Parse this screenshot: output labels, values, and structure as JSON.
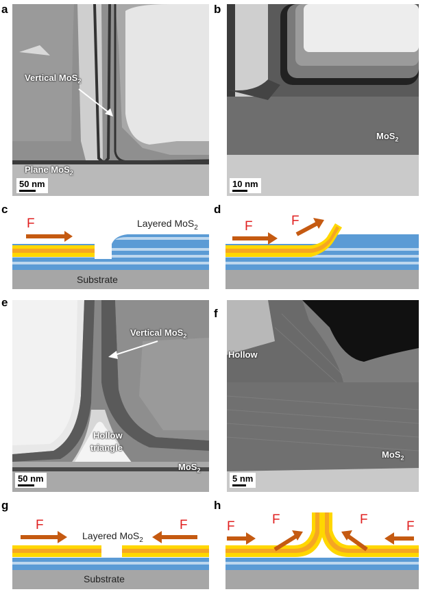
{
  "panels": {
    "a": {
      "letter": "a",
      "label_vertical": "Vertical MoS",
      "label_vertical_sub": "2",
      "label_plane": "Plane MoS",
      "label_plane_sub": "2",
      "scale": "50 nm"
    },
    "b": {
      "letter": "b",
      "label_mos2": "MoS",
      "label_mos2_sub": "2",
      "scale": "10 nm"
    },
    "c": {
      "letter": "c",
      "force": "F",
      "layered": "Layered MoS",
      "layered_sub": "2",
      "substrate": "Substrate"
    },
    "d": {
      "letter": "d",
      "force1": "F",
      "force2": "F"
    },
    "e": {
      "letter": "e",
      "label_vertical": "Vertical MoS",
      "label_vertical_sub": "2",
      "label_hollow": "Hollow",
      "label_triangle": "triangle",
      "label_mos2": "MoS",
      "label_mos2_sub": "2",
      "scale": "50 nm"
    },
    "f": {
      "letter": "f",
      "label_hollow": "Hollow",
      "label_mos2": "MoS",
      "label_mos2_sub": "2",
      "scale": "5 nm"
    },
    "g": {
      "letter": "g",
      "force_left": "F",
      "force_right": "F",
      "layered": "Layered MoS",
      "layered_sub": "2",
      "substrate": "Substrate"
    },
    "h": {
      "letter": "h",
      "force1": "F",
      "force2": "F",
      "force3": "F",
      "force4": "F"
    }
  },
  "colors": {
    "mos2_blue": "#5b9bd5",
    "light_blue": "#bdd7ee",
    "substrate": "#a6a6a6",
    "yellow": "#ffd700",
    "orange": "#f5a623",
    "arrow": "#c55a11",
    "force_text": "#e02020"
  }
}
